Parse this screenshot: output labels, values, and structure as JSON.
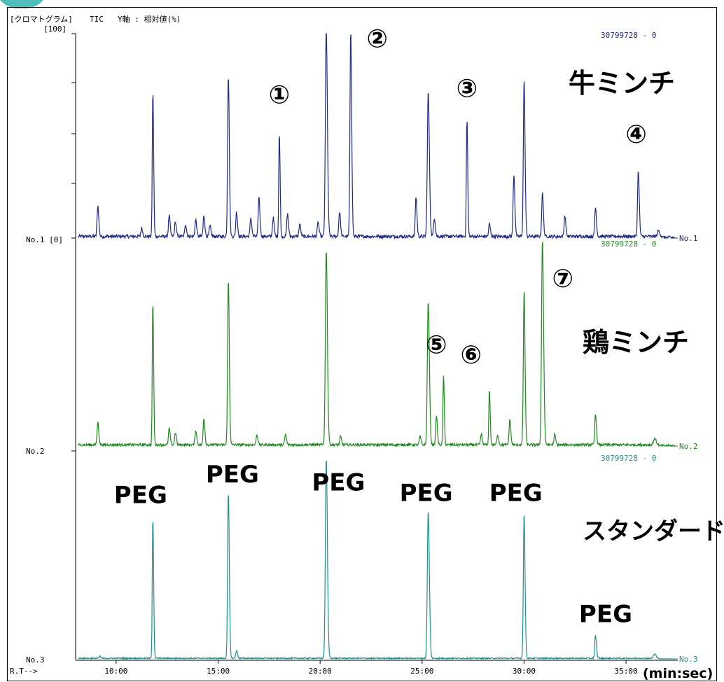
{
  "header": {
    "title_bracket": "[クロマトグラム]",
    "title_tic": "TIC",
    "title_yaxis": "Y軸 : 相対値(%)",
    "y_top": "[100]"
  },
  "colors": {
    "trace1": "#1f2a8a",
    "trace2": "#1f8a1f",
    "trace3": "#1f9090",
    "axis": "#000000",
    "corner": "#2fb3b0"
  },
  "chart_data": {
    "type": "line",
    "xlabel": "(min:sec)",
    "x_axis_label": "R.T-->",
    "x_ticks": [
      "10:00",
      "15:00",
      "20:00",
      "25:00",
      "30:00",
      "35:00"
    ],
    "x_tick_minutes": [
      10,
      15,
      20,
      25,
      30,
      35
    ],
    "xlim_minutes": [
      8.15,
      37.4
    ],
    "series": [
      {
        "name": "牛ミンチ",
        "label_no": "No.1",
        "y_label": "No.1 [0]",
        "scale_text": "30799728 - 0",
        "peaks": [
          {
            "t": 9.1,
            "h": 15,
            "w": 0.05
          },
          {
            "t": 11.25,
            "h": 4,
            "w": 0.05
          },
          {
            "t": 11.8,
            "h": 70,
            "w": 0.04
          },
          {
            "t": 12.6,
            "h": 10,
            "w": 0.05
          },
          {
            "t": 12.9,
            "h": 7,
            "w": 0.05
          },
          {
            "t": 13.4,
            "h": 6,
            "w": 0.05
          },
          {
            "t": 13.9,
            "h": 8,
            "w": 0.05
          },
          {
            "t": 14.3,
            "h": 10,
            "w": 0.05
          },
          {
            "t": 14.6,
            "h": 5,
            "w": 0.05
          },
          {
            "t": 15.5,
            "h": 78,
            "w": 0.05
          },
          {
            "t": 15.9,
            "h": 12,
            "w": 0.05
          },
          {
            "t": 16.6,
            "h": 9,
            "w": 0.05
          },
          {
            "t": 17.0,
            "h": 19,
            "w": 0.05
          },
          {
            "t": 17.7,
            "h": 9,
            "w": 0.05
          },
          {
            "t": 18.0,
            "h": 50,
            "w": 0.04
          },
          {
            "t": 18.4,
            "h": 11,
            "w": 0.05
          },
          {
            "t": 19.0,
            "h": 6,
            "w": 0.05
          },
          {
            "t": 19.9,
            "h": 7,
            "w": 0.05
          },
          {
            "t": 20.3,
            "h": 100,
            "w": 0.06
          },
          {
            "t": 20.95,
            "h": 12,
            "w": 0.05
          },
          {
            "t": 21.5,
            "h": 100,
            "w": 0.05
          },
          {
            "t": 24.7,
            "h": 19,
            "w": 0.05
          },
          {
            "t": 25.3,
            "h": 70,
            "w": 0.06
          },
          {
            "t": 25.6,
            "h": 9,
            "w": 0.05
          },
          {
            "t": 27.2,
            "h": 57,
            "w": 0.04
          },
          {
            "t": 28.3,
            "h": 6,
            "w": 0.05
          },
          {
            "t": 29.5,
            "h": 30,
            "w": 0.05
          },
          {
            "t": 30.0,
            "h": 76,
            "w": 0.05
          },
          {
            "t": 30.9,
            "h": 21,
            "w": 0.05
          },
          {
            "t": 32.0,
            "h": 10,
            "w": 0.05
          },
          {
            "t": 33.5,
            "h": 14,
            "w": 0.05
          },
          {
            "t": 35.6,
            "h": 32,
            "w": 0.05
          },
          {
            "t": 36.6,
            "h": 3,
            "w": 0.08
          }
        ]
      },
      {
        "name": "鶏ミンチ",
        "label_no": "No.2",
        "y_label": "No.2",
        "scale_text": "30799728 - 0",
        "peaks": [
          {
            "t": 9.1,
            "h": 11,
            "w": 0.05
          },
          {
            "t": 11.8,
            "h": 69,
            "w": 0.04
          },
          {
            "t": 12.6,
            "h": 8,
            "w": 0.05
          },
          {
            "t": 12.9,
            "h": 6,
            "w": 0.05
          },
          {
            "t": 13.9,
            "h": 7,
            "w": 0.05
          },
          {
            "t": 14.3,
            "h": 13,
            "w": 0.05
          },
          {
            "t": 15.5,
            "h": 80,
            "w": 0.05
          },
          {
            "t": 16.9,
            "h": 5,
            "w": 0.05
          },
          {
            "t": 18.3,
            "h": 5,
            "w": 0.05
          },
          {
            "t": 20.3,
            "h": 95,
            "w": 0.06
          },
          {
            "t": 21.0,
            "h": 4,
            "w": 0.05
          },
          {
            "t": 24.9,
            "h": 4,
            "w": 0.05
          },
          {
            "t": 25.3,
            "h": 70,
            "w": 0.06
          },
          {
            "t": 25.7,
            "h": 14,
            "w": 0.05
          },
          {
            "t": 26.05,
            "h": 33,
            "w": 0.04
          },
          {
            "t": 27.9,
            "h": 5,
            "w": 0.05
          },
          {
            "t": 28.3,
            "h": 27,
            "w": 0.04
          },
          {
            "t": 28.7,
            "h": 5,
            "w": 0.05
          },
          {
            "t": 29.3,
            "h": 12,
            "w": 0.05
          },
          {
            "t": 30.0,
            "h": 75,
            "w": 0.05
          },
          {
            "t": 30.9,
            "h": 100,
            "w": 0.06
          },
          {
            "t": 31.5,
            "h": 5,
            "w": 0.05
          },
          {
            "t": 33.5,
            "h": 15,
            "w": 0.05
          },
          {
            "t": 36.4,
            "h": 3,
            "w": 0.08
          }
        ]
      },
      {
        "name": "スタンダード",
        "label_no": "No.3",
        "y_label": "No.3",
        "scale_text": "30799728 - 0",
        "peaks": [
          {
            "t": 9.2,
            "h": 1,
            "w": 0.05
          },
          {
            "t": 11.8,
            "h": 69,
            "w": 0.04
          },
          {
            "t": 15.5,
            "h": 81,
            "w": 0.05
          },
          {
            "t": 15.9,
            "h": 4,
            "w": 0.05
          },
          {
            "t": 20.3,
            "h": 98,
            "w": 0.06
          },
          {
            "t": 25.3,
            "h": 72,
            "w": 0.06
          },
          {
            "t": 30.0,
            "h": 71,
            "w": 0.05
          },
          {
            "t": 33.5,
            "h": 11,
            "w": 0.05
          },
          {
            "t": 36.4,
            "h": 2,
            "w": 0.08
          }
        ]
      }
    ]
  },
  "annotations": {
    "panel1": [
      {
        "text": "①",
        "t": 18.0,
        "h": 65
      },
      {
        "text": "②",
        "t": 22.8,
        "h": 92
      },
      {
        "text": "③",
        "t": 27.2,
        "h": 68
      },
      {
        "text": "④",
        "t": 35.5,
        "h": 46
      }
    ],
    "panel2": [
      {
        "text": "⑤",
        "t": 25.7,
        "h": 45
      },
      {
        "text": "⑥",
        "t": 27.4,
        "h": 40
      },
      {
        "text": "⑦",
        "t": 31.9,
        "h": 77
      }
    ],
    "panel3": [
      {
        "text": "PEG",
        "t": 11.2,
        "h": 76
      },
      {
        "text": "PEG",
        "t": 15.7,
        "h": 86
      },
      {
        "text": "PEG",
        "t": 20.9,
        "h": 82
      },
      {
        "text": "PEG",
        "t": 25.2,
        "h": 77
      },
      {
        "text": "PEG",
        "t": 29.6,
        "h": 77
      },
      {
        "text": "PEG",
        "t": 34.0,
        "h": 18
      }
    ]
  }
}
